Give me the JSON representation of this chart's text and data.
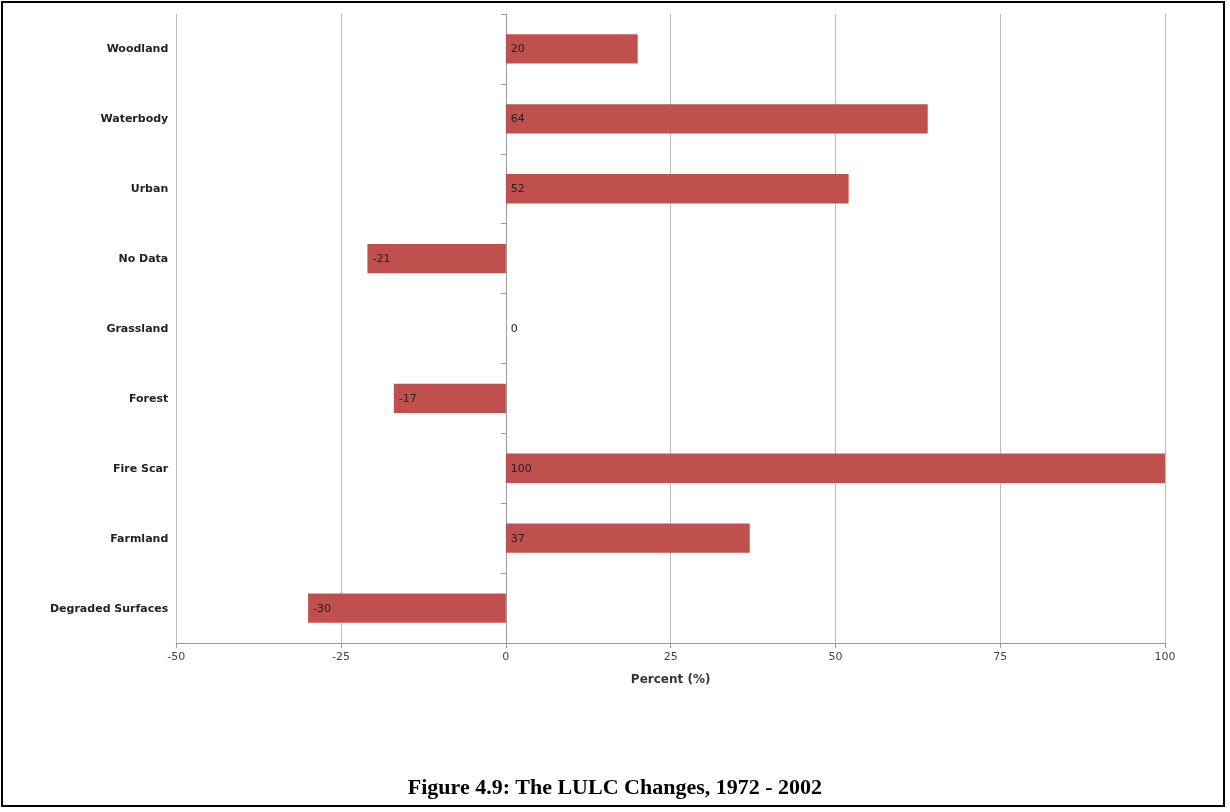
{
  "chart_data": {
    "type": "bar",
    "orientation": "horizontal",
    "title": "Figure 4.9: The LULC Changes, 1972 - 2002",
    "xlabel": "Percent (%)",
    "categories": [
      "Woodland",
      "Waterbody",
      "Urban",
      "No Data",
      "Grassland",
      "Forest",
      "Fire Scar",
      "Farmland",
      "Degraded Surfaces"
    ],
    "values": [
      20,
      64,
      52,
      -21,
      0,
      -17,
      100,
      37,
      -30
    ],
    "color": "#c0504d",
    "xlim": [
      -50,
      100
    ],
    "xticks": [
      -50,
      -25,
      0,
      25,
      50,
      75,
      100
    ],
    "grid": "x",
    "data_labels": true
  }
}
